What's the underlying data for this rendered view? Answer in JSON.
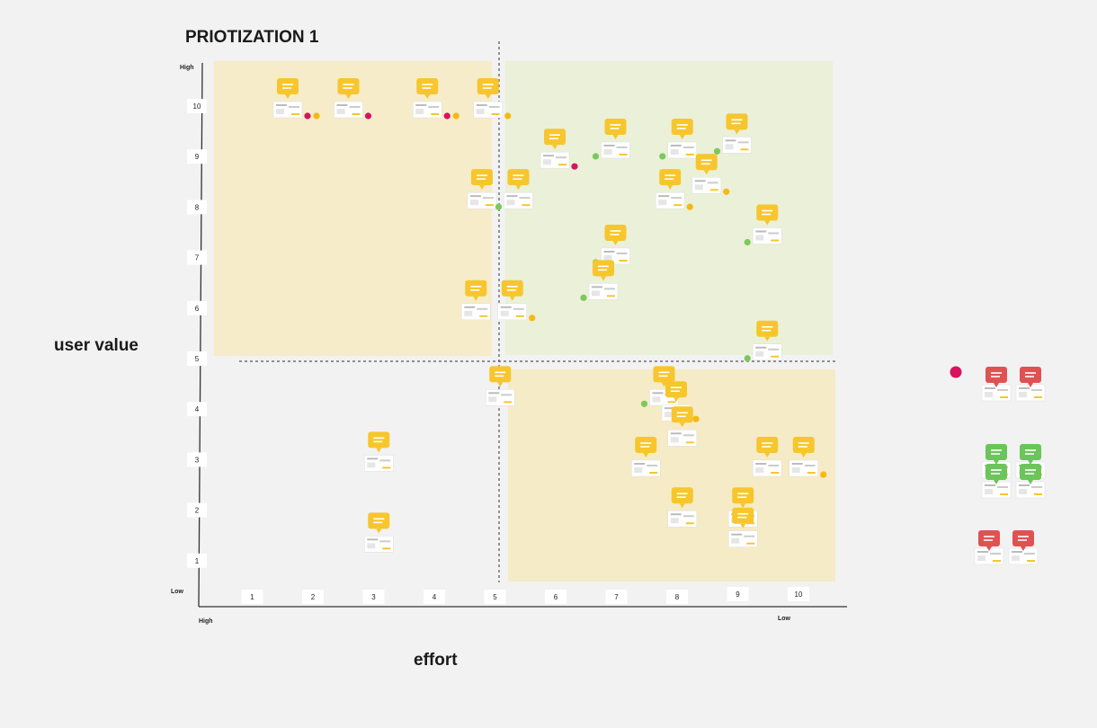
{
  "board": {
    "title": "PRIOTIZATION 1",
    "y_axis_title": "user value",
    "x_axis_title": "effort",
    "y_high": "High",
    "y_low": "Low",
    "x_high": "High",
    "x_low": "Low"
  },
  "colors": {
    "background": "#f2f2f2",
    "quadrant_top_left": "#f6ecc9",
    "quadrant_top_right": "#ebf0d8",
    "quadrant_bottom_right": "#f5ebc6",
    "note_yellow": "#f7c62d",
    "note_green": "#6cc55a",
    "note_red": "#e05252",
    "dot_magenta": "#d6145f",
    "dot_orange": "#f5b914",
    "dot_green": "#7dc85b"
  },
  "chart_data": {
    "type": "scatter",
    "title": "PRIOTIZATION 1",
    "xlabel": "effort",
    "ylabel": "user value",
    "x_ticks": [
      "1",
      "2",
      "3",
      "4",
      "5",
      "6",
      "7",
      "8",
      "9",
      "10"
    ],
    "y_ticks": [
      "1",
      "2",
      "3",
      "4",
      "5",
      "6",
      "7",
      "8",
      "9",
      "10"
    ],
    "xlim": [
      0,
      10.5
    ],
    "ylim": [
      0,
      10.5
    ],
    "x_direction": "high effort at left, low effort at right",
    "y_direction": "low value at bottom, high value at top",
    "dividers": {
      "x": 5,
      "y": 5
    },
    "grid": false,
    "points": [
      {
        "x": 1.6,
        "y": 10.0,
        "dots": [
          "magenta",
          "orange"
        ]
      },
      {
        "x": 2.6,
        "y": 10.0,
        "dots": [
          "magenta"
        ]
      },
      {
        "x": 3.9,
        "y": 10.0,
        "dots": [
          "magenta",
          "orange"
        ]
      },
      {
        "x": 4.9,
        "y": 10.0,
        "dots": [
          "orange"
        ]
      },
      {
        "x": 6.0,
        "y": 9.0,
        "dots": [
          "magenta"
        ]
      },
      {
        "x": 7.0,
        "y": 9.2,
        "dots": [
          "green"
        ]
      },
      {
        "x": 8.1,
        "y": 9.2,
        "dots": [
          "green"
        ]
      },
      {
        "x": 9.0,
        "y": 9.3,
        "dots": [
          "green"
        ]
      },
      {
        "x": 8.5,
        "y": 8.5,
        "dots": [
          "orange"
        ]
      },
      {
        "x": 7.9,
        "y": 8.2,
        "dots": [
          "orange"
        ]
      },
      {
        "x": 4.8,
        "y": 8.2,
        "dots": []
      },
      {
        "x": 5.4,
        "y": 8.2,
        "dots": [
          "green"
        ]
      },
      {
        "x": 9.5,
        "y": 7.5,
        "dots": [
          "green"
        ]
      },
      {
        "x": 7.0,
        "y": 7.1,
        "dots": [
          "green"
        ]
      },
      {
        "x": 6.8,
        "y": 6.4,
        "dots": [
          "green"
        ]
      },
      {
        "x": 4.7,
        "y": 6.0,
        "dots": []
      },
      {
        "x": 5.3,
        "y": 6.0,
        "dots": [
          "orange"
        ]
      },
      {
        "x": 9.5,
        "y": 5.2,
        "dots": [
          "green"
        ]
      },
      {
        "x": 5.1,
        "y": 4.3,
        "dots": []
      },
      {
        "x": 7.8,
        "y": 4.3,
        "dots": [
          "green"
        ]
      },
      {
        "x": 8.0,
        "y": 4.0,
        "dots": [
          "orange"
        ]
      },
      {
        "x": 8.1,
        "y": 3.5,
        "dots": []
      },
      {
        "x": 7.5,
        "y": 2.9,
        "dots": []
      },
      {
        "x": 9.5,
        "y": 2.9,
        "dots": []
      },
      {
        "x": 10.1,
        "y": 2.9,
        "dots": [
          "orange"
        ]
      },
      {
        "x": 3.1,
        "y": 3.0,
        "dots": []
      },
      {
        "x": 3.1,
        "y": 1.4,
        "dots": []
      },
      {
        "x": 8.1,
        "y": 1.9,
        "dots": []
      },
      {
        "x": 9.1,
        "y": 1.9,
        "dots": []
      },
      {
        "x": 9.1,
        "y": 1.5,
        "dots": []
      }
    ],
    "off_chart_groups": [
      {
        "note_color": "red",
        "count": 2,
        "marker": "magenta"
      },
      {
        "note_color": "green",
        "count": 4
      },
      {
        "note_color": "red",
        "count": 2
      }
    ]
  }
}
